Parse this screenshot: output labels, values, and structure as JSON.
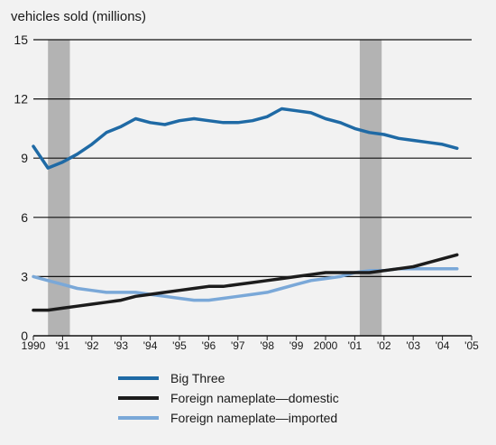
{
  "chart_data": {
    "type": "line",
    "title": "",
    "ylabel": "vehicles sold (millions)",
    "xlabel": "",
    "ylim": [
      0,
      15
    ],
    "xlim": [
      1990,
      2005
    ],
    "yticks": [
      "0",
      "3",
      "6",
      "9",
      "12",
      "15"
    ],
    "xticks": [
      "1990",
      "'91",
      "'92",
      "'93",
      "'94",
      "'95",
      "'96",
      "'97",
      "'98",
      "'99",
      "2000",
      "'01",
      "'02",
      "'03",
      "'04",
      "'05"
    ],
    "grid": true,
    "legend_position": "bottom",
    "recession_periods": [
      [
        1990.5,
        1991.25
      ],
      [
        2001.17,
        2001.92
      ]
    ],
    "x": [
      1990,
      1990.5,
      1991,
      1991.5,
      1992,
      1992.5,
      1993,
      1993.5,
      1994,
      1994.5,
      1995,
      1995.5,
      1996,
      1996.5,
      1997,
      1997.5,
      1998,
      1998.5,
      1999,
      1999.5,
      2000,
      2000.5,
      2001,
      2001.5,
      2002,
      2002.5,
      2003,
      2003.5,
      2004,
      2004.5
    ],
    "series": [
      {
        "name": "Big Three",
        "color": "#1f6aa5",
        "values": [
          9.6,
          8.5,
          8.8,
          9.2,
          9.7,
          10.3,
          10.6,
          11.0,
          10.8,
          10.7,
          10.9,
          11.0,
          10.9,
          10.8,
          10.8,
          10.9,
          11.1,
          11.5,
          11.4,
          11.3,
          11.0,
          10.8,
          10.5,
          10.3,
          10.2,
          10.0,
          9.9,
          9.8,
          9.7,
          9.5
        ]
      },
      {
        "name": "Foreign nameplate—domestic",
        "color": "#1c1c1c",
        "values": [
          1.3,
          1.3,
          1.4,
          1.5,
          1.6,
          1.7,
          1.8,
          2.0,
          2.1,
          2.2,
          2.3,
          2.4,
          2.5,
          2.5,
          2.6,
          2.7,
          2.8,
          2.9,
          3.0,
          3.1,
          3.2,
          3.2,
          3.2,
          3.2,
          3.3,
          3.4,
          3.5,
          3.7,
          3.9,
          4.1
        ]
      },
      {
        "name": "Foreign nameplate—imported",
        "color": "#7aa8d8",
        "values": [
          3.0,
          2.8,
          2.6,
          2.4,
          2.3,
          2.2,
          2.2,
          2.2,
          2.1,
          2.0,
          1.9,
          1.8,
          1.8,
          1.9,
          2.0,
          2.1,
          2.2,
          2.4,
          2.6,
          2.8,
          2.9,
          3.0,
          3.2,
          3.3,
          3.3,
          3.4,
          3.4,
          3.4,
          3.4,
          3.4
        ]
      }
    ]
  },
  "colors": {
    "recession_band": "#b3b3b3",
    "gridline": "#111111",
    "background": "#f2f2f2"
  }
}
